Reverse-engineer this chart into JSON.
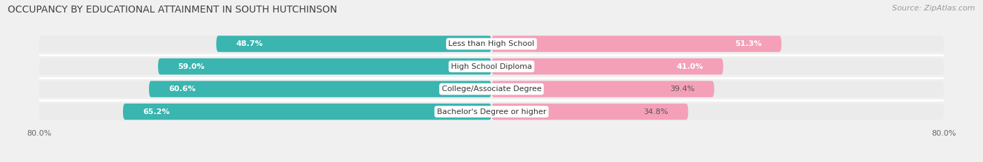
{
  "title": "OCCUPANCY BY EDUCATIONAL ATTAINMENT IN SOUTH HUTCHINSON",
  "source": "Source: ZipAtlas.com",
  "categories": [
    "Less than High School",
    "High School Diploma",
    "College/Associate Degree",
    "Bachelor's Degree or higher"
  ],
  "owner_values": [
    48.7,
    59.0,
    60.6,
    65.2
  ],
  "renter_values": [
    51.3,
    41.0,
    39.4,
    34.8
  ],
  "owner_color": "#3ab5b0",
  "renter_color": "#f4a0b8",
  "bar_bg_color": "#e0e0e0",
  "row_bg_color": "#ebebeb",
  "axis_label_left": "80.0%",
  "axis_label_right": "80.0%",
  "title_fontsize": 10,
  "source_fontsize": 8,
  "bar_label_fontsize": 8,
  "cat_label_fontsize": 8,
  "axis_tick_fontsize": 8,
  "legend_fontsize": 8,
  "fig_width": 14.06,
  "fig_height": 2.33,
  "background_color": "#f0f0f0",
  "max_val": 80.0
}
